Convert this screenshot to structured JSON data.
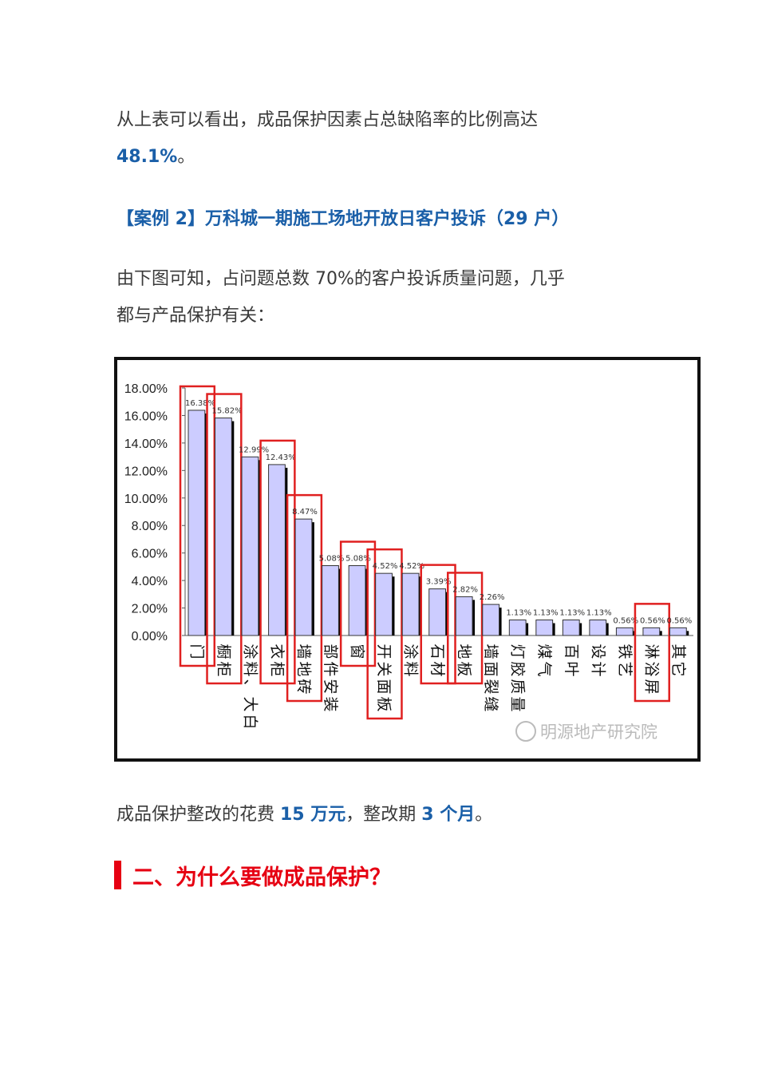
{
  "doc": {
    "para1_text": "从上表可以看出，成品保护因素占总缺陷率的比例高达",
    "para1_highlight": "48.1%",
    "para1_end": "。",
    "case_heading": "【案例 2】万科城一期施工场地开放日客户投诉（29 户）",
    "para2_line1": "由下图可知，占问题总数 70%的客户投诉质量问题，几乎",
    "para2_line2": "都与产品保护有关：",
    "para3_a": "成品保护整改的花费 ",
    "para3_b": "15 万元",
    "para3_c": "，整改期 ",
    "para3_d": "3 个月",
    "para3_e": "。",
    "section_heading": "二、为什么要做成品保护？",
    "watermark": "明源地产研究院"
  },
  "colors": {
    "highlight_blue": "#1a5fa8",
    "heading_red": "#e60012",
    "bar_fill": "#ccccff",
    "highlight_box": "#e02020"
  },
  "chart_data": {
    "type": "bar",
    "title": "",
    "xlabel": "",
    "ylabel": "",
    "ylim": [
      0,
      18
    ],
    "yticks": [
      "0.00%",
      "2.00%",
      "4.00%",
      "6.00%",
      "8.00%",
      "10.00%",
      "12.00%",
      "14.00%",
      "16.00%",
      "18.00%"
    ],
    "categories": [
      "门",
      "橱柜",
      "涂料、大白",
      "衣柜",
      "墙地砖",
      "部件安装",
      "窗",
      "开关面板",
      "涂料",
      "石材",
      "地板",
      "墙面裂缝",
      "灯胶质量",
      "煤气",
      "百叶",
      "设计",
      "铁艺",
      "淋浴屏",
      "其它"
    ],
    "values": [
      16.38,
      15.82,
      12.99,
      12.43,
      8.47,
      5.08,
      5.08,
      4.52,
      4.52,
      3.39,
      2.82,
      2.26,
      1.13,
      1.13,
      1.13,
      1.13,
      0.56,
      0.56,
      0.56
    ],
    "labels": [
      "16.38%",
      "15.82%",
      "12.99%",
      "12.43%",
      "8.47%",
      "5.08%",
      "5.08%",
      "4.52%",
      "4.52%",
      "3.39%",
      "2.82%",
      "2.26%",
      "1.13%",
      "1.13%",
      "1.13%",
      "1.13%",
      "0.56%",
      "0.56%",
      "0.56%"
    ],
    "highlighted": [
      "门",
      "橱柜",
      "衣柜",
      "墙地砖",
      "窗",
      "开关面板",
      "石材",
      "地板",
      "淋浴屏"
    ],
    "grid": false,
    "legend": "none"
  }
}
